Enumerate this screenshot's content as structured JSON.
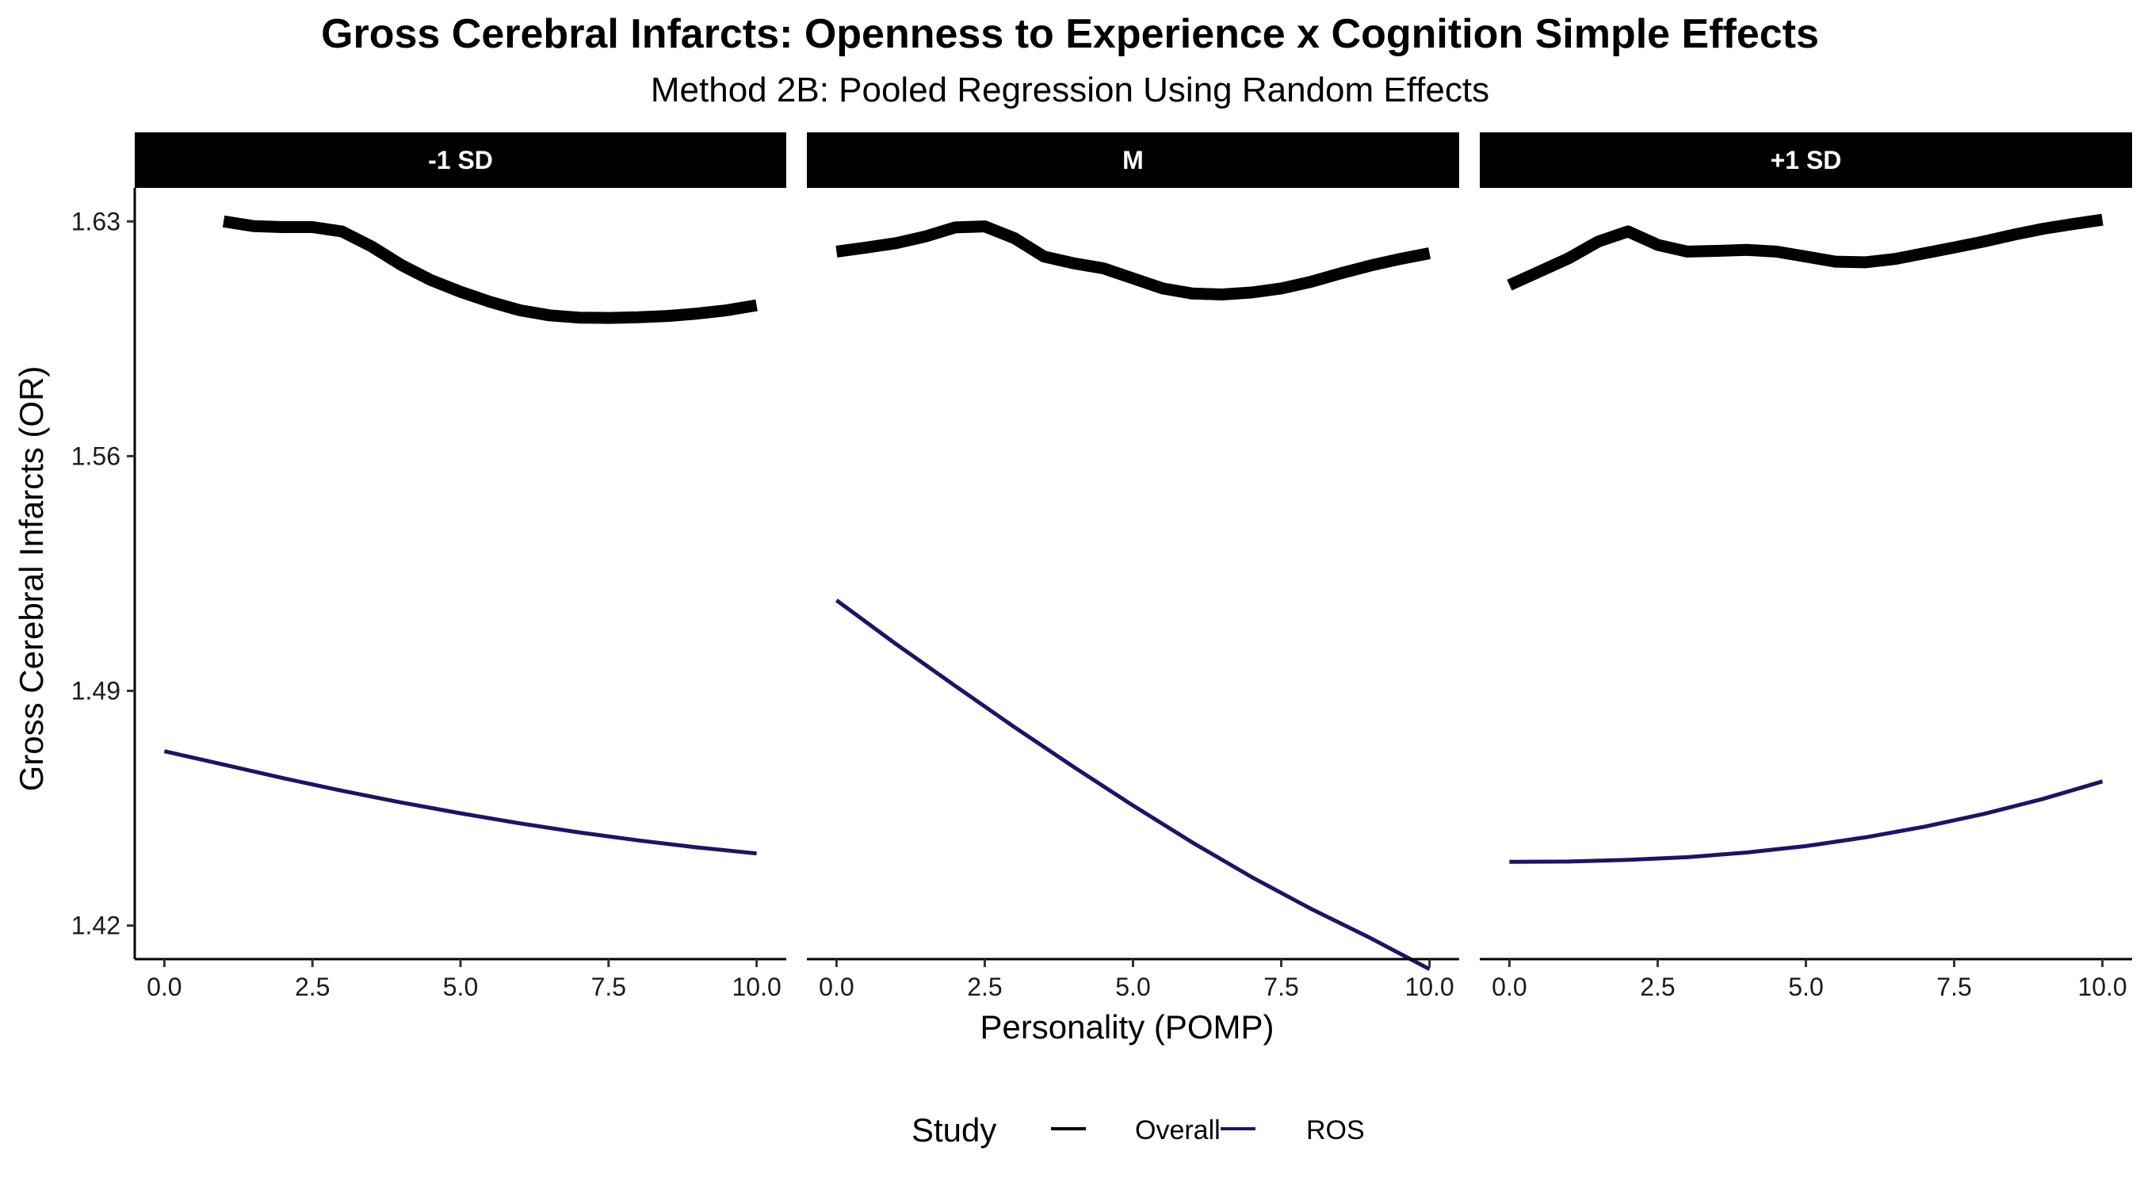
{
  "chart_data": {
    "type": "line",
    "title": "Gross Cerebral Infarcts: Openness to Experience x Cognition Simple Effects",
    "subtitle": "Method 2B: Pooled Regression Using Random Effects",
    "xlabel": "Personality (POMP)",
    "ylabel": "Gross Cerebral Infarcts (OR)",
    "x_ticks": [
      "0.0",
      "2.5",
      "5.0",
      "7.5",
      "10.0"
    ],
    "y_ticks": [
      "1.42",
      "1.49",
      "1.56",
      "1.63"
    ],
    "xlim": [
      -0.5,
      10.5
    ],
    "ylim": [
      1.41,
      1.64
    ],
    "grid": false,
    "legend": {
      "title": "Study",
      "position": "bottom",
      "entries": [
        "Overall",
        "ROS"
      ]
    },
    "colors": {
      "Overall": "#000000",
      "ROS": "#1e1366"
    },
    "panels": [
      {
        "label": "-1 SD",
        "series": [
          {
            "name": "Overall",
            "x": [
              1.0,
              1.5,
              2.0,
              2.5,
              3.0,
              3.5,
              4.0,
              4.5,
              5.0,
              5.5,
              6.0,
              6.5,
              7.0,
              7.5,
              8.0,
              8.5,
              9.0,
              9.5,
              10.0
            ],
            "y": [
              1.63,
              1.6286,
              1.6283,
              1.6283,
              1.627,
              1.6225,
              1.617,
              1.6125,
              1.609,
              1.606,
              1.6035,
              1.602,
              1.6013,
              1.6012,
              1.6014,
              1.6018,
              1.6025,
              1.6035,
              1.605
            ]
          },
          {
            "name": "ROS",
            "x": [
              0,
              1,
              2,
              3,
              4,
              5,
              6,
              7,
              8,
              9,
              10
            ],
            "y": [
              1.472,
              1.468,
              1.464,
              1.4602,
              1.4567,
              1.4535,
              1.4505,
              1.4478,
              1.4454,
              1.4433,
              1.4415
            ]
          }
        ]
      },
      {
        "label": "M",
        "series": [
          {
            "name": "Overall",
            "x": [
              0.0,
              0.5,
              1.0,
              1.5,
              2.0,
              2.5,
              3.0,
              3.5,
              4.0,
              4.5,
              5.0,
              5.5,
              6.0,
              6.5,
              7.0,
              7.5,
              8.0,
              8.5,
              9.0,
              9.5,
              10.0
            ],
            "y": [
              1.621,
              1.6222,
              1.6235,
              1.6255,
              1.6282,
              1.6285,
              1.625,
              1.6195,
              1.6175,
              1.616,
              1.613,
              1.61,
              1.6085,
              1.6082,
              1.6088,
              1.61,
              1.612,
              1.6145,
              1.6168,
              1.6188,
              1.6205
            ]
          },
          {
            "name": "ROS",
            "x": [
              0,
              1,
              2,
              3,
              4,
              5,
              6,
              7,
              8,
              9,
              10
            ],
            "y": [
              1.517,
              1.504,
              1.4915,
              1.4792,
              1.4673,
              1.4558,
              1.4448,
              1.4345,
              1.425,
              1.4163,
              1.407
            ]
          }
        ]
      },
      {
        "label": "+1 SD",
        "series": [
          {
            "name": "Overall",
            "x": [
              0.0,
              0.5,
              1.0,
              1.5,
              2.0,
              2.5,
              3.0,
              3.5,
              4.0,
              4.5,
              5.0,
              5.5,
              6.0,
              6.5,
              7.0,
              7.5,
              8.0,
              8.5,
              9.0,
              9.5,
              10.0
            ],
            "y": [
              1.611,
              1.615,
              1.619,
              1.624,
              1.627,
              1.623,
              1.621,
              1.6212,
              1.6215,
              1.621,
              1.6195,
              1.618,
              1.6178,
              1.6188,
              1.6205,
              1.6222,
              1.624,
              1.626,
              1.6278,
              1.6292,
              1.6305
            ]
          },
          {
            "name": "ROS",
            "x": [
              0,
              1,
              2,
              3,
              4,
              5,
              6,
              7,
              8,
              9,
              10
            ],
            "y": [
              1.439,
              1.4391,
              1.4396,
              1.4404,
              1.4418,
              1.4437,
              1.4463,
              1.4495,
              1.4533,
              1.4578,
              1.463
            ]
          }
        ]
      }
    ]
  }
}
